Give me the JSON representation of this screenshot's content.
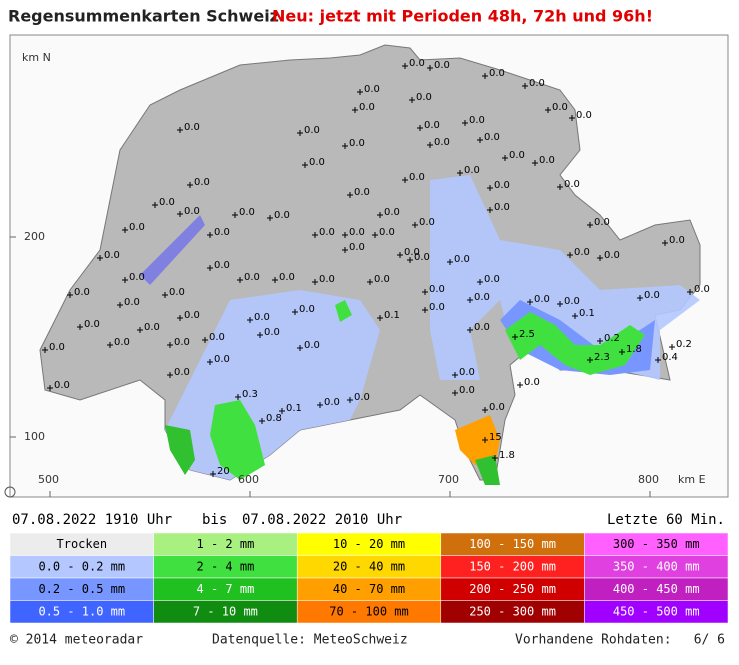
{
  "header": {
    "title": "Regensummenkarten Schweiz",
    "announcement": "Neu: jetzt mit Perioden 48h, 72h und 96h!"
  },
  "map": {
    "north_unit": "km N",
    "east_unit": "km E",
    "north_ticks": [
      200,
      100
    ],
    "east_ticks": [
      500,
      600,
      700,
      800
    ],
    "stations": [
      "2.5",
      "0.2",
      "2.3",
      "1.8",
      "0.2",
      "0.4",
      "0.1",
      "0.3",
      "0.1",
      "0.8",
      "15",
      "1.8",
      "0.1",
      "20",
      "0.0",
      "0.0",
      "0.0",
      "0.0",
      "0.0",
      "0.0",
      "0.0",
      "0.0",
      "0.0",
      "0.0",
      "0.0",
      "0.0",
      "0.0",
      "0.0",
      "0.0",
      "0.0",
      "0.0",
      "0.0",
      "0.0",
      "0.0",
      "0.0",
      "0.0",
      "0.0",
      "0.0",
      "0.0",
      "0.0",
      "0.0",
      "0.0",
      "0.0",
      "0.0",
      "0.0",
      "0.0",
      "0.0",
      "0.0",
      "0.0",
      "0.0",
      "0.0",
      "0.0",
      "0.0",
      "0.0",
      "0.0",
      "0.0",
      "0.0",
      "0.0",
      "0.0",
      "0.0",
      "0.0",
      "0.0",
      "0.0",
      "0.0",
      "0.0",
      "0.0",
      "0.0",
      "0.0",
      "0.0",
      "0.0",
      "0.0",
      "0.0",
      "0.0",
      "0.0",
      "0.0",
      "0.0",
      "0.0",
      "0.0",
      "0.0",
      "0.0",
      "0.0",
      "0.0",
      "0.0",
      "0.0",
      "0.0",
      "0.0",
      "0.0",
      "0.0",
      "0.0",
      "0.0",
      "0.0",
      "0.0",
      "0.0",
      "0.0",
      "0.0",
      "0.0",
      "0.0",
      "0.0"
    ]
  },
  "period": {
    "start": "07.08.2022 1910 Uhr",
    "separator": "bis",
    "end": "07.08.2022 2010 Uhr",
    "duration": "Letzte 60 Min."
  },
  "legend": {
    "rows": [
      [
        "Trocken",
        "1 - 2 mm",
        "10 - 20 mm",
        "100 - 150 mm",
        "300 - 350 mm"
      ],
      [
        "0.0 - 0.2 mm",
        "2 - 4 mm",
        "20 - 40 mm",
        "150 - 200 mm",
        "350 - 400 mm"
      ],
      [
        "0.2 - 0.5 mm",
        "4 - 7 mm",
        "40 - 70 mm",
        "200 - 250 mm",
        "400 - 450 mm"
      ],
      [
        "0.5 - 1.0 mm",
        "7 - 10 mm",
        "70 - 100 mm",
        "250 - 300 mm",
        "450 - 500 mm"
      ]
    ]
  },
  "footer": {
    "copyright": "© 2014 meteoradar",
    "source": "Datenquelle: MeteoSchweiz",
    "raw_data_label": "Vorhandene Rohdaten:",
    "raw_data": "6/ 6"
  }
}
